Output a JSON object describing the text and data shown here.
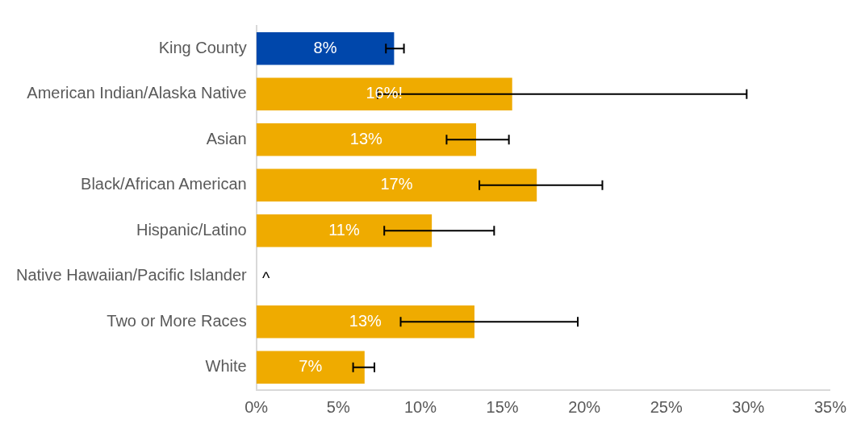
{
  "chart_data": {
    "type": "bar",
    "orientation": "horizontal",
    "categories": [
      "King County",
      "American Indian/Alaska Native",
      "Asian",
      "Black/African American",
      "Hispanic/Latino",
      "Native Hawaiian/Pacific Islander",
      "Two or More Races",
      "White"
    ],
    "values": [
      8.4,
      15.6,
      13.4,
      17.1,
      10.7,
      null,
      13.3,
      6.6
    ],
    "colors": [
      "#0047ab",
      "#efab00",
      "#efab00",
      "#efab00",
      "#efab00",
      "#efab00",
      "#efab00",
      "#efab00"
    ],
    "errors": [
      [
        7.9,
        9.0
      ],
      [
        7.4,
        29.9
      ],
      [
        11.6,
        15.4
      ],
      [
        13.6,
        21.1
      ],
      [
        7.8,
        14.5
      ],
      null,
      [
        8.8,
        19.6
      ],
      [
        5.9,
        7.2
      ]
    ],
    "value_labels": [
      "8%",
      "16%!",
      "13%",
      "17%",
      "11%",
      "^",
      "13%",
      "7%"
    ],
    "xlim": [
      0,
      35
    ],
    "xticks": [
      {
        "value": 0,
        "label": "0%"
      },
      {
        "value": 5,
        "label": "5%"
      },
      {
        "value": 10,
        "label": "10%"
      },
      {
        "value": 15,
        "label": "15%"
      },
      {
        "value": 20,
        "label": "20%"
      },
      {
        "value": 25,
        "label": "25%"
      },
      {
        "value": 30,
        "label": "30%"
      },
      {
        "value": 35,
        "label": "35%"
      }
    ],
    "grid": false,
    "legend": false
  }
}
